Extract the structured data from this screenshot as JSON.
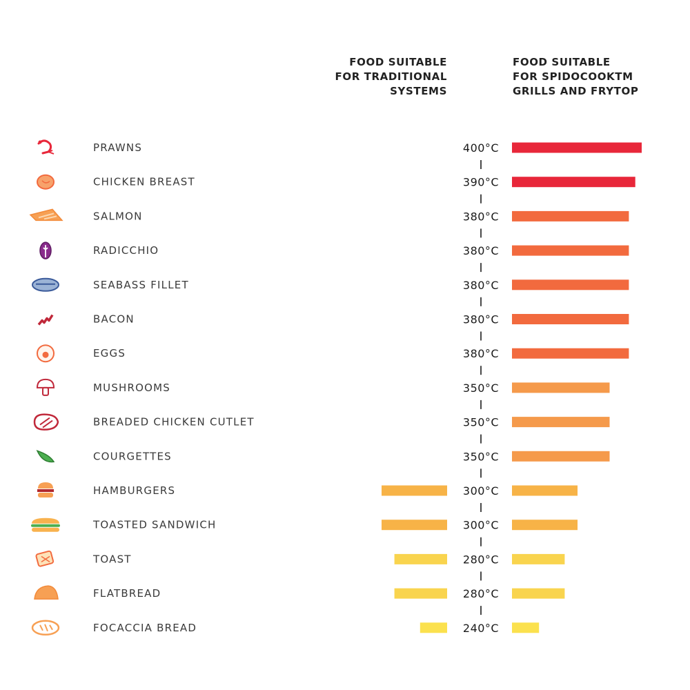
{
  "chart_data": {
    "type": "bar",
    "title": "",
    "headers": {
      "traditional": [
        "FOOD SUITABLE",
        "FOR TRADITIONAL",
        "SYSTEMS"
      ],
      "spidocook": [
        "FOOD SUITABLE",
        "FOR SPIDOCOOKTM",
        "GRILLS AND FRYTOP"
      ]
    },
    "unit": "°C",
    "temp_domain": [
      200,
      400
    ],
    "categories": [
      "PRAWNS",
      "CHICKEN BREAST",
      "SALMON",
      "RADICCHIO",
      "SEABASS FILLET",
      "BACON",
      "EGGS",
      "MUSHROOMS",
      "BREADED CHICKEN CUTLET",
      "COURGETTES",
      "HAMBURGERS",
      "TOASTED SANDWICH",
      "TOAST",
      "FLATBREAD",
      "FOCACCIA BREAD"
    ],
    "temperature_labels": [
      "400°C",
      "390°C",
      "380°C",
      "380°C",
      "380°C",
      "380°C",
      "380°C",
      "350°C",
      "350°C",
      "350°C",
      "300°C",
      "300°C",
      "280°C",
      "280°C",
      "240°C"
    ],
    "series": [
      {
        "name": "Spidocook grills and frytop",
        "values": [
          400,
          390,
          380,
          380,
          380,
          380,
          380,
          350,
          350,
          350,
          300,
          300,
          280,
          280,
          240
        ]
      },
      {
        "name": "Traditional systems",
        "values": [
          null,
          null,
          null,
          null,
          null,
          null,
          null,
          null,
          null,
          null,
          300,
          300,
          280,
          280,
          240
        ]
      }
    ],
    "colors": {
      "400": "#e8273a",
      "390": "#e8273a",
      "380": "#f26a3e",
      "350": "#f59a4b",
      "300": "#f7b347",
      "280": "#f9d44e",
      "240": "#fbe14e"
    },
    "icons": [
      "prawn-icon",
      "chicken-breast-icon",
      "salmon-icon",
      "radicchio-icon",
      "seabass-icon",
      "bacon-icon",
      "egg-icon",
      "mushroom-icon",
      "breaded-cutlet-icon",
      "courgette-icon",
      "hamburger-icon",
      "sandwich-icon",
      "toast-icon",
      "flatbread-icon",
      "focaccia-icon"
    ]
  }
}
